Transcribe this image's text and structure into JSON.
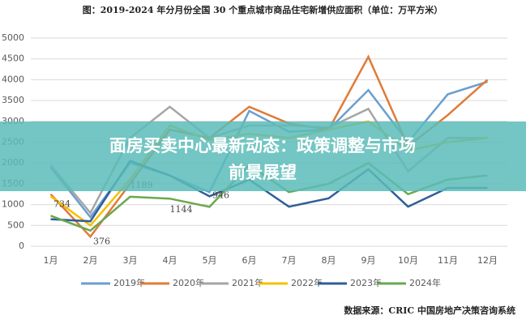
{
  "chart_data": {
    "type": "line",
    "title": "图：2019-2024 年分月份全国 30 个重点城市商品住宅新增供应面积（单位：万平方米）",
    "source": "数据来源：CRIC 中国房地产决策咨询系统",
    "banner": [
      "面房买卖中心最新动态：政策调整与市场",
      "前景展望"
    ],
    "categories": [
      "1月",
      "2月",
      "3月",
      "4月",
      "5月",
      "6月",
      "7月",
      "8月",
      "9月",
      "10月",
      "11月",
      "12月"
    ],
    "ylim": [
      0,
      5000
    ],
    "yticks": [
      0,
      500,
      1000,
      1500,
      2000,
      2500,
      3000,
      3500,
      4000,
      4500,
      5000
    ],
    "grid": true,
    "series": [
      {
        "name": "2019年",
        "color": "#6a9fcf",
        "values": [
          1900,
          700,
          2000,
          1700,
          1300,
          3250,
          2750,
          2800,
          3750,
          2500,
          3650,
          3950
        ]
      },
      {
        "name": "2020年",
        "color": "#e07b39",
        "values": [
          1250,
          230,
          1500,
          2800,
          2600,
          3350,
          2950,
          2800,
          4550,
          2400,
          3150,
          4000
        ]
      },
      {
        "name": "2021年",
        "color": "#a5a5a5",
        "values": [
          1950,
          800,
          2600,
          3350,
          2600,
          2900,
          2900,
          2850,
          3300,
          1800,
          2600,
          2600
        ]
      },
      {
        "name": "2022年",
        "color": "#f5c000",
        "values": [
          1200,
          500,
          1600,
          2900,
          2550,
          2700,
          2600,
          2800,
          3000,
          2300,
          2500,
          2600
        ]
      },
      {
        "name": "2023年",
        "color": "#2f5f98",
        "values": [
          650,
          600,
          2050,
          1700,
          1200,
          1600,
          950,
          1150,
          1850,
          950,
          1400,
          1400
        ]
      },
      {
        "name": "2024年",
        "color": "#6aa84f",
        "show_labels": true,
        "values": [
          734,
          376,
          1189,
          1144,
          946,
          1950,
          1300,
          1500,
          2000,
          1250,
          1600,
          1700
        ]
      }
    ]
  }
}
